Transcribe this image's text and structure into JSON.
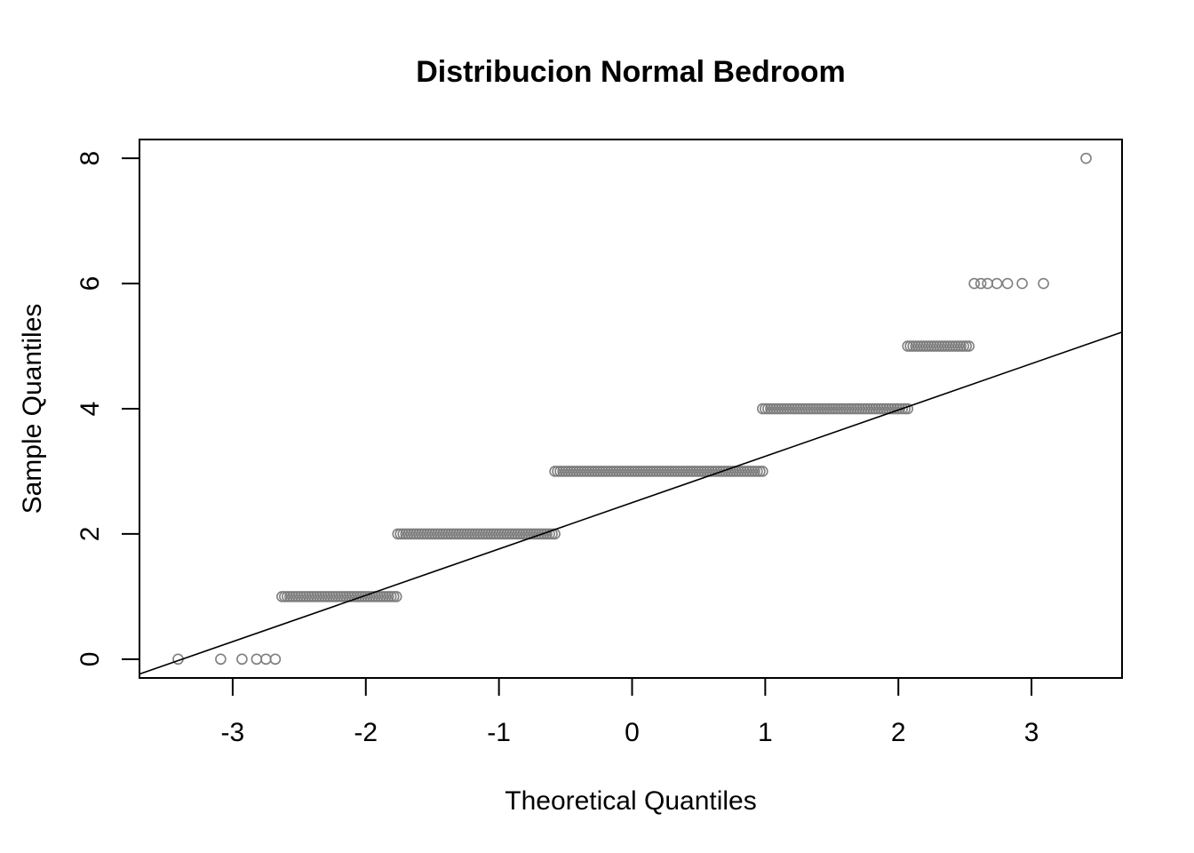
{
  "chart_data": {
    "type": "scatter",
    "subtype": "normal-qq-plot",
    "title": "Distribucion Normal Bedroom",
    "xlabel": "Theoretical Quantiles",
    "ylabel": "Sample Quantiles",
    "xlim": [
      -3.7,
      3.68
    ],
    "ylim": [
      -0.3,
      8.3
    ],
    "xticks": [
      -3,
      -2,
      -1,
      0,
      1,
      2,
      3
    ],
    "xtick_labels": [
      "-3",
      "-2",
      "-1",
      "0",
      "1",
      "2",
      "3"
    ],
    "yticks": [
      0,
      2,
      4,
      6,
      8
    ],
    "ytick_labels": [
      "0",
      "2",
      "4",
      "6",
      "8"
    ],
    "grid": false,
    "colors": {
      "points": "#7f7f7f",
      "line": "#000000",
      "frame": "#000000"
    },
    "reference_line": {
      "intercept": 2.5,
      "slope": 0.74
    },
    "segments": [
      {
        "y": 0,
        "x": [
          -3.41,
          -3.09,
          -2.93,
          -2.82,
          -2.75,
          -2.68
        ]
      },
      {
        "y": 1,
        "x_start": -2.63,
        "x_end": -1.77
      },
      {
        "y": 2,
        "x_start": -1.76,
        "x_end": -0.58
      },
      {
        "y": 3,
        "x_start": -0.58,
        "x_end": 0.98
      },
      {
        "y": 4,
        "x_start": 0.98,
        "x_end": 2.07
      },
      {
        "y": 5,
        "x_start": 2.07,
        "x_end": 2.53
      },
      {
        "y": 6,
        "x": [
          2.57,
          2.62,
          2.67,
          2.74,
          2.82,
          2.93,
          3.09
        ]
      },
      {
        "y": 8,
        "x": [
          3.41
        ]
      }
    ]
  }
}
